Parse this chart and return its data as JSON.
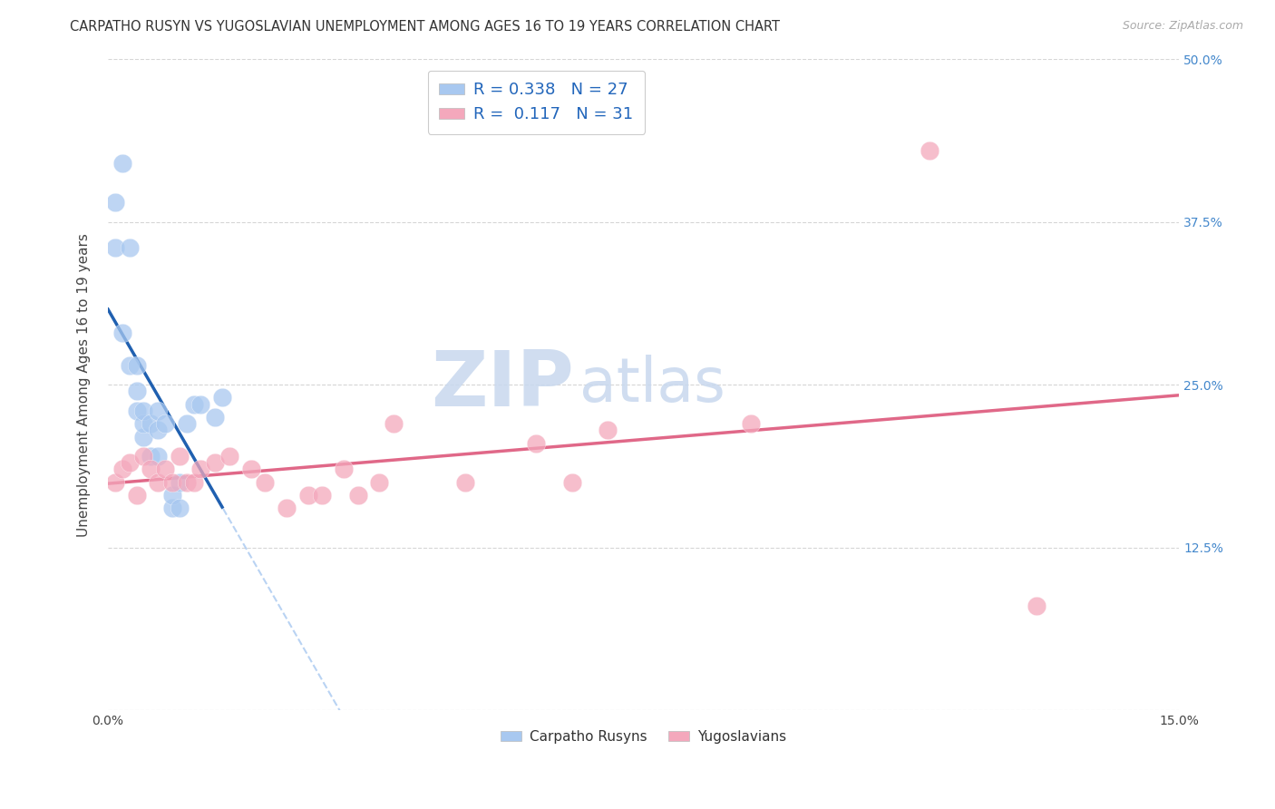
{
  "title": "CARPATHO RUSYN VS YUGOSLAVIAN UNEMPLOYMENT AMONG AGES 16 TO 19 YEARS CORRELATION CHART",
  "source": "Source: ZipAtlas.com",
  "ylabel": "Unemployment Among Ages 16 to 19 years",
  "xlim": [
    0.0,
    0.15
  ],
  "ylim": [
    0.0,
    0.5
  ],
  "color_blue": "#A8C8F0",
  "color_pink": "#F4A8BC",
  "line_blue": "#2060B0",
  "line_pink": "#E06888",
  "line_blue_dash": "#A8C8F0",
  "watermark_zip_color": "#C0D0E8",
  "watermark_atlas_color": "#C0D0E8",
  "carpatho_x": [
    0.001,
    0.001,
    0.002,
    0.002,
    0.003,
    0.003,
    0.004,
    0.004,
    0.004,
    0.005,
    0.005,
    0.005,
    0.006,
    0.006,
    0.007,
    0.007,
    0.007,
    0.008,
    0.009,
    0.009,
    0.01,
    0.01,
    0.011,
    0.012,
    0.013,
    0.015,
    0.016
  ],
  "carpatho_y": [
    0.39,
    0.355,
    0.29,
    0.42,
    0.265,
    0.355,
    0.23,
    0.245,
    0.265,
    0.21,
    0.22,
    0.23,
    0.195,
    0.22,
    0.195,
    0.215,
    0.23,
    0.22,
    0.155,
    0.165,
    0.155,
    0.175,
    0.22,
    0.235,
    0.235,
    0.225,
    0.24
  ],
  "yugoslavian_x": [
    0.001,
    0.002,
    0.003,
    0.004,
    0.005,
    0.006,
    0.007,
    0.008,
    0.009,
    0.01,
    0.011,
    0.012,
    0.013,
    0.015,
    0.017,
    0.02,
    0.022,
    0.025,
    0.028,
    0.03,
    0.033,
    0.035,
    0.038,
    0.04,
    0.05,
    0.06,
    0.065,
    0.07,
    0.09,
    0.115,
    0.13
  ],
  "yugoslavian_y": [
    0.175,
    0.185,
    0.19,
    0.165,
    0.195,
    0.185,
    0.175,
    0.185,
    0.175,
    0.195,
    0.175,
    0.175,
    0.185,
    0.19,
    0.195,
    0.185,
    0.175,
    0.155,
    0.165,
    0.165,
    0.185,
    0.165,
    0.175,
    0.22,
    0.175,
    0.205,
    0.175,
    0.215,
    0.22,
    0.43,
    0.08
  ]
}
